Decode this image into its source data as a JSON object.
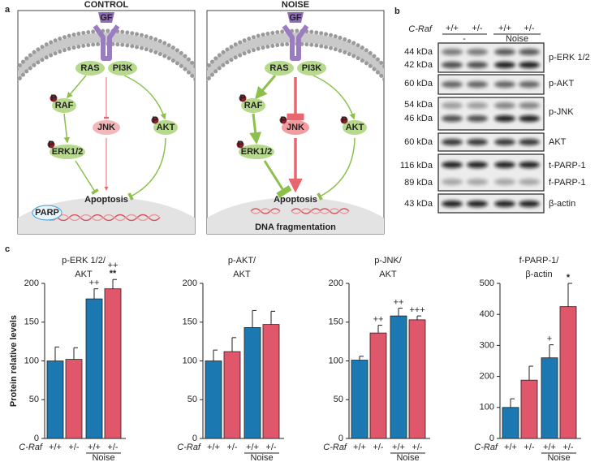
{
  "panel_a": {
    "label": "a",
    "control_title": "CONTROL",
    "noise_title": "NOISE",
    "nodes": {
      "gf": "GF",
      "ras": "RAS",
      "pi3k": "PI3K",
      "raf": "RAF",
      "jnk": "JNK",
      "akt": "AKT",
      "erk": "ERK1/2",
      "apoptosis": "Apoptosis"
    },
    "phospho": "P",
    "parp": "PARP",
    "dna_fragmentation": "DNA fragmentation"
  },
  "panel_b": {
    "label": "b",
    "genotype_label": "C-Raf",
    "genotypes": [
      "+/+",
      "+/-",
      "+/+",
      "+/-"
    ],
    "groups": [
      "-",
      "Noise"
    ],
    "rows": [
      {
        "sizes": [
          "44 kDa",
          "42 kDa"
        ],
        "proteins": [
          "p-ERK 1/2"
        ]
      },
      {
        "sizes": [
          "60 kDa"
        ],
        "proteins": [
          "p-AKT"
        ]
      },
      {
        "sizes": [
          "54 kDa",
          "46 kDa"
        ],
        "proteins": [
          "p-JNK"
        ]
      },
      {
        "sizes": [
          "60 kDa"
        ],
        "proteins": [
          "AKT"
        ]
      },
      {
        "sizes": [
          "116 kDa",
          "89 kDa"
        ],
        "proteins": [
          "t-PARP-1",
          "f-PARP-1"
        ]
      },
      {
        "sizes": [
          "43 kDa"
        ],
        "proteins": [
          "β-actin"
        ]
      }
    ]
  },
  "panel_c_label": "c",
  "chart_data": [
    {
      "type": "bar",
      "title": [
        "p-ERK 1/2/",
        "AKT"
      ],
      "ylabel": "Protein relative levels",
      "x_label": "C-Raf",
      "group_label": "Noise",
      "categories": [
        "+/+",
        "+/-",
        "+/+",
        "+/-"
      ],
      "values": [
        100,
        102,
        180,
        193
      ],
      "errors": [
        18,
        15,
        13,
        12
      ],
      "colors": [
        "#1b78b0",
        "#e0566a",
        "#1b78b0",
        "#e0566a"
      ],
      "annotations": [
        [],
        [],
        [
          "++"
        ],
        [
          "++",
          "**"
        ]
      ],
      "ylim": [
        0,
        200
      ],
      "yticks": [
        0,
        50,
        100,
        150,
        200
      ]
    },
    {
      "type": "bar",
      "title": [
        "p-AKT/",
        "AKT"
      ],
      "x_label": "C-Raf",
      "group_label": "Noise",
      "categories": [
        "+/+",
        "+/-",
        "+/+",
        "+/-"
      ],
      "values": [
        100,
        112,
        143,
        147
      ],
      "errors": [
        14,
        18,
        22,
        17
      ],
      "colors": [
        "#1b78b0",
        "#e0566a",
        "#1b78b0",
        "#e0566a"
      ],
      "annotations": [
        [],
        [],
        [],
        []
      ],
      "ylim": [
        0,
        200
      ],
      "yticks": [
        0,
        50,
        100,
        150,
        200
      ]
    },
    {
      "type": "bar",
      "title": [
        "p-JNK/",
        "AKT"
      ],
      "x_label": "C-Raf",
      "group_label": "Noise",
      "categories": [
        "+/+",
        "+/-",
        "+/+",
        "+/-"
      ],
      "values": [
        101,
        136,
        158,
        153
      ],
      "errors": [
        5,
        10,
        10,
        5
      ],
      "colors": [
        "#1b78b0",
        "#e0566a",
        "#1b78b0",
        "#e0566a"
      ],
      "annotations": [
        [],
        [
          "++"
        ],
        [
          "++"
        ],
        [
          "+++"
        ]
      ],
      "ylim": [
        0,
        200
      ],
      "yticks": [
        0,
        50,
        100,
        150,
        200
      ]
    },
    {
      "type": "bar",
      "title": [
        "f-PARP-1/",
        "β-actin"
      ],
      "x_label": "C-Raf",
      "group_label": "Noise",
      "categories": [
        "+/+",
        "+/-",
        "+/+",
        "+/-"
      ],
      "values": [
        100,
        188,
        260,
        425
      ],
      "errors": [
        28,
        45,
        42,
        75
      ],
      "colors": [
        "#1b78b0",
        "#e0566a",
        "#1b78b0",
        "#e0566a"
      ],
      "annotations": [
        [],
        [],
        [
          "+"
        ],
        [
          "*"
        ]
      ],
      "ylim": [
        0,
        500
      ],
      "yticks": [
        0,
        100,
        200,
        300,
        400,
        500
      ]
    }
  ]
}
